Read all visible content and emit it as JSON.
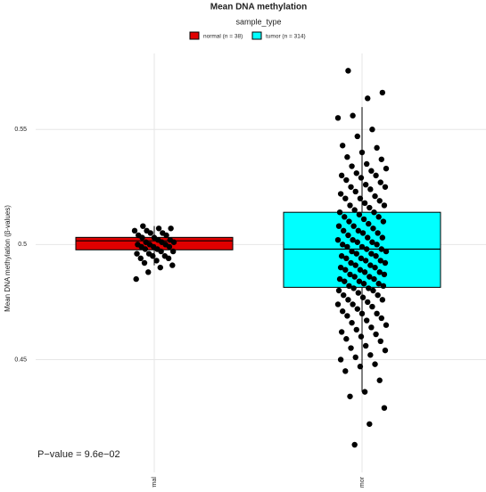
{
  "chart_data": {
    "type": "box",
    "title": "Mean DNA methylation",
    "ylabel": "Mean DNA methylation (β-values)",
    "legend_title": "sample_type",
    "annotation": "P−value = 9.6e−02",
    "categories": [
      "normal",
      "tumor"
    ],
    "ylim": [
      0.401,
      0.583
    ],
    "yticks": [
      0.45,
      0.5,
      0.55
    ],
    "grid": true,
    "series": [
      {
        "name": "normal (n = 38)",
        "color": "#e00000",
        "whislo": 0.491,
        "q1": 0.4977,
        "median": 0.5016,
        "q3": 0.5031,
        "whishi": 0.508,
        "points": [
          0.508,
          0.507,
          0.507,
          0.506,
          0.506,
          0.505,
          0.505,
          0.504,
          0.504,
          0.503,
          0.503,
          0.502,
          0.502,
          0.501,
          0.501,
          0.501,
          0.5,
          0.5,
          0.5,
          0.499,
          0.499,
          0.499,
          0.498,
          0.498,
          0.497,
          0.497,
          0.496,
          0.496,
          0.495,
          0.495,
          0.494,
          0.494,
          0.493,
          0.492,
          0.491,
          0.49,
          0.488,
          0.485
        ]
      },
      {
        "name": "tumor (n = 314)",
        "color": "#00ffff",
        "whislo": 0.436,
        "q1": 0.4814,
        "median": 0.498,
        "q3": 0.514,
        "whishi": 0.5597,
        "points": [
          0.5755,
          0.566,
          0.5635,
          0.556,
          0.555,
          0.55,
          0.547,
          0.543,
          0.542,
          0.54,
          0.538,
          0.537,
          0.535,
          0.534,
          0.533,
          0.532,
          0.531,
          0.53,
          0.53,
          0.529,
          0.528,
          0.527,
          0.526,
          0.525,
          0.525,
          0.524,
          0.523,
          0.522,
          0.521,
          0.52,
          0.52,
          0.519,
          0.518,
          0.517,
          0.517,
          0.516,
          0.515,
          0.514,
          0.514,
          0.513,
          0.512,
          0.512,
          0.511,
          0.51,
          0.51,
          0.509,
          0.508,
          0.508,
          0.507,
          0.506,
          0.506,
          0.505,
          0.505,
          0.504,
          0.503,
          0.503,
          0.502,
          0.502,
          0.501,
          0.501,
          0.5,
          0.5,
          0.499,
          0.499,
          0.498,
          0.498,
          0.497,
          0.497,
          0.496,
          0.496,
          0.495,
          0.495,
          0.494,
          0.494,
          0.493,
          0.493,
          0.492,
          0.492,
          0.491,
          0.491,
          0.49,
          0.49,
          0.489,
          0.489,
          0.488,
          0.488,
          0.487,
          0.487,
          0.486,
          0.486,
          0.485,
          0.485,
          0.484,
          0.484,
          0.483,
          0.483,
          0.482,
          0.482,
          0.481,
          0.481,
          0.48,
          0.48,
          0.479,
          0.478,
          0.478,
          0.477,
          0.476,
          0.476,
          0.475,
          0.474,
          0.474,
          0.473,
          0.472,
          0.471,
          0.47,
          0.47,
          0.469,
          0.468,
          0.467,
          0.466,
          0.465,
          0.464,
          0.463,
          0.462,
          0.461,
          0.46,
          0.459,
          0.458,
          0.456,
          0.455,
          0.454,
          0.452,
          0.451,
          0.45,
          0.448,
          0.447,
          0.445,
          0.441,
          0.436,
          0.434,
          0.429,
          0.422,
          0.413
        ]
      }
    ]
  }
}
